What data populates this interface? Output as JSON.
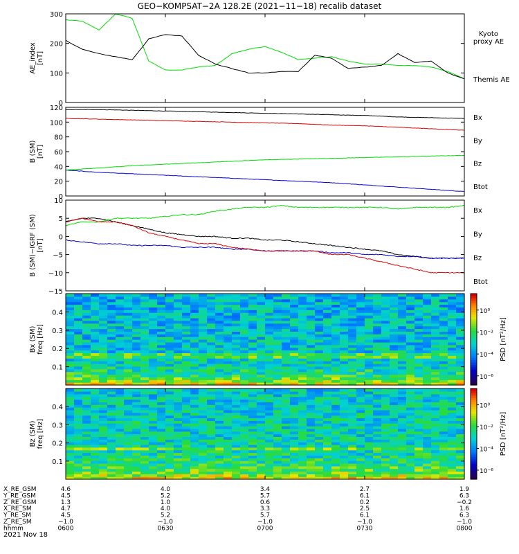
{
  "title": "GEO−KOMPSAT−2A 128.2E (2021−11−18) recalib dataset",
  "x_ticks": [
    "0600",
    "0630",
    "0700",
    "0730",
    "0800"
  ],
  "ephemeris": {
    "rows": [
      {
        "label": "X_RE_GSM",
        "values": [
          "4.6",
          "4.0",
          "3.4",
          "2.7",
          "1.9"
        ]
      },
      {
        "label": "Y_RE_GSM",
        "values": [
          "4.5",
          "5.2",
          "5.7",
          "6.1",
          "6.3"
        ]
      },
      {
        "label": "Z_RE_GSM",
        "values": [
          "1.3",
          "1.0",
          "0.6",
          "0.2",
          "−0.2"
        ]
      },
      {
        "label": "X_RE_SM",
        "values": [
          "4.7",
          "4.0",
          "3.3",
          "2.5",
          "1.6"
        ]
      },
      {
        "label": "Y_RE_SM",
        "values": [
          "4.5",
          "5.2",
          "5.7",
          "6.1",
          "6.3"
        ]
      },
      {
        "label": "Z_RE_SM",
        "values": [
          "−1.0",
          "−1.0",
          "−1.0",
          "−1.0",
          "−1.0"
        ]
      }
    ],
    "time_label": "hhmm",
    "date_label": "2021 Nov 18"
  },
  "colors": {
    "black": "#000000",
    "green": "#00dd00",
    "red": "#dd0000",
    "blue": "#0000cc"
  },
  "chart_data": [
    {
      "type": "line",
      "ylabel_line1": "AE_index",
      "ylabel_line2": "[nT]",
      "ylim": [
        0,
        300
      ],
      "yticks": [
        "0",
        "100",
        "200",
        "300"
      ],
      "x": [
        0,
        5,
        10,
        15,
        20,
        25,
        30,
        35,
        40,
        45,
        50,
        55,
        60,
        65,
        70,
        75,
        80,
        85,
        90,
        95,
        100,
        105,
        110,
        115,
        120
      ],
      "series": [
        {
          "name": "Kyoto proxy AE",
          "name_line1": "Kyoto",
          "name_line2": "proxy AE",
          "color": "#00dd00",
          "values": [
            280,
            275,
            245,
            300,
            285,
            140,
            110,
            110,
            120,
            125,
            165,
            180,
            190,
            170,
            145,
            150,
            155,
            140,
            130,
            130,
            125,
            125,
            120,
            105,
            80
          ]
        },
        {
          "name": "Themis AE",
          "color": "#000000",
          "values": [
            210,
            180,
            165,
            155,
            145,
            215,
            230,
            225,
            160,
            130,
            115,
            100,
            100,
            105,
            105,
            160,
            150,
            115,
            120,
            125,
            165,
            135,
            140,
            100,
            80
          ]
        }
      ]
    },
    {
      "type": "line",
      "ylabel_line1": "B (SM)",
      "ylabel_line2": "[nT]",
      "ylim": [
        0,
        120
      ],
      "yticks": [
        "0",
        "20",
        "40",
        "60",
        "80",
        "100",
        "120"
      ],
      "x": [
        0,
        10,
        20,
        30,
        40,
        50,
        60,
        70,
        80,
        90,
        100,
        110,
        120
      ],
      "series": [
        {
          "name": "Btot",
          "color": "#000000",
          "values": [
            117,
            117,
            116,
            115,
            114,
            113,
            112,
            111,
            110,
            109,
            107,
            106,
            105
          ]
        },
        {
          "name": "Bx",
          "color": "#0000cc",
          "values": [
            35,
            32,
            30,
            28,
            26,
            24,
            22,
            20,
            18,
            15,
            12,
            9,
            6
          ]
        },
        {
          "name": "By",
          "color": "#00dd00",
          "values": [
            35,
            38,
            41,
            43,
            45,
            47,
            49,
            50,
            51,
            52,
            53,
            54,
            55
          ]
        },
        {
          "name": "Bz",
          "color": "#dd0000",
          "values": [
            105,
            104,
            103,
            102,
            101,
            100,
            99,
            98,
            96,
            95,
            93,
            91,
            89
          ]
        }
      ]
    },
    {
      "type": "line",
      "ylabel_line1": "B (SM)−IGRF (SM)",
      "ylabel_line2": "[nT]",
      "ylim": [
        -15,
        10
      ],
      "yticks": [
        "−15",
        "−10",
        "−5",
        "0",
        "5",
        "10"
      ],
      "x": [
        0,
        5,
        10,
        15,
        20,
        25,
        30,
        35,
        40,
        45,
        50,
        55,
        60,
        65,
        70,
        75,
        80,
        85,
        90,
        95,
        100,
        105,
        110,
        115,
        120
      ],
      "series": [
        {
          "name": "Btot",
          "color": "#000000",
          "values": [
            4,
            5,
            5,
            4,
            3,
            2,
            1,
            0.5,
            0,
            0,
            -0.5,
            -0.5,
            -1,
            -1,
            -1.5,
            -2,
            -2.5,
            -3,
            -3.5,
            -4,
            -5,
            -5.5,
            -6,
            -6,
            -6
          ]
        },
        {
          "name": "Bx",
          "color": "#0000cc",
          "values": [
            -1,
            -1.5,
            -2,
            -2,
            -2.5,
            -2.5,
            -2.5,
            -3,
            -3,
            -3,
            -3.5,
            -3.5,
            -4,
            -4,
            -4,
            -4,
            -4.5,
            -4.5,
            -5,
            -5,
            -5.5,
            -5.5,
            -6,
            -6,
            -6
          ]
        },
        {
          "name": "By",
          "color": "#00dd00",
          "values": [
            3,
            4,
            4,
            5,
            5,
            5,
            5.5,
            6,
            6,
            7,
            7.5,
            8,
            8,
            8.5,
            8,
            8,
            8,
            8,
            8,
            8,
            7.5,
            8,
            8,
            8,
            8.5
          ]
        },
        {
          "name": "Bz",
          "color": "#dd0000",
          "values": [
            4,
            5,
            4,
            4,
            3,
            1,
            0,
            -1,
            -2,
            -2,
            -3,
            -3.5,
            -4,
            -4,
            -4,
            -4,
            -5,
            -5,
            -6,
            -7,
            -8,
            -9,
            -10,
            -10,
            -10
          ]
        }
      ]
    },
    {
      "type": "heatmap",
      "ylabel_line1": "Bx (SM)",
      "ylabel_line2": "freq [Hz]",
      "ylim": [
        0,
        0.5
      ],
      "yticks": [
        "0.1",
        "0.2",
        "0.3",
        "0.4"
      ],
      "colorbar_label": "PSD [nT²/Hz]",
      "colorbar_ticks": [
        "10⁰",
        "10⁻²",
        "10⁻⁴",
        "10⁻⁶"
      ]
    },
    {
      "type": "heatmap",
      "ylabel_line1": "Bz (SM)",
      "ylabel_line2": "freq [Hz]",
      "ylim": [
        0,
        0.5
      ],
      "yticks": [
        "0.1",
        "0.2",
        "0.3",
        "0.4"
      ],
      "colorbar_label": "PSD [nT²/Hz]",
      "colorbar_ticks": [
        "10⁰",
        "10⁻²",
        "10⁻⁴",
        "10⁻⁶"
      ]
    }
  ]
}
